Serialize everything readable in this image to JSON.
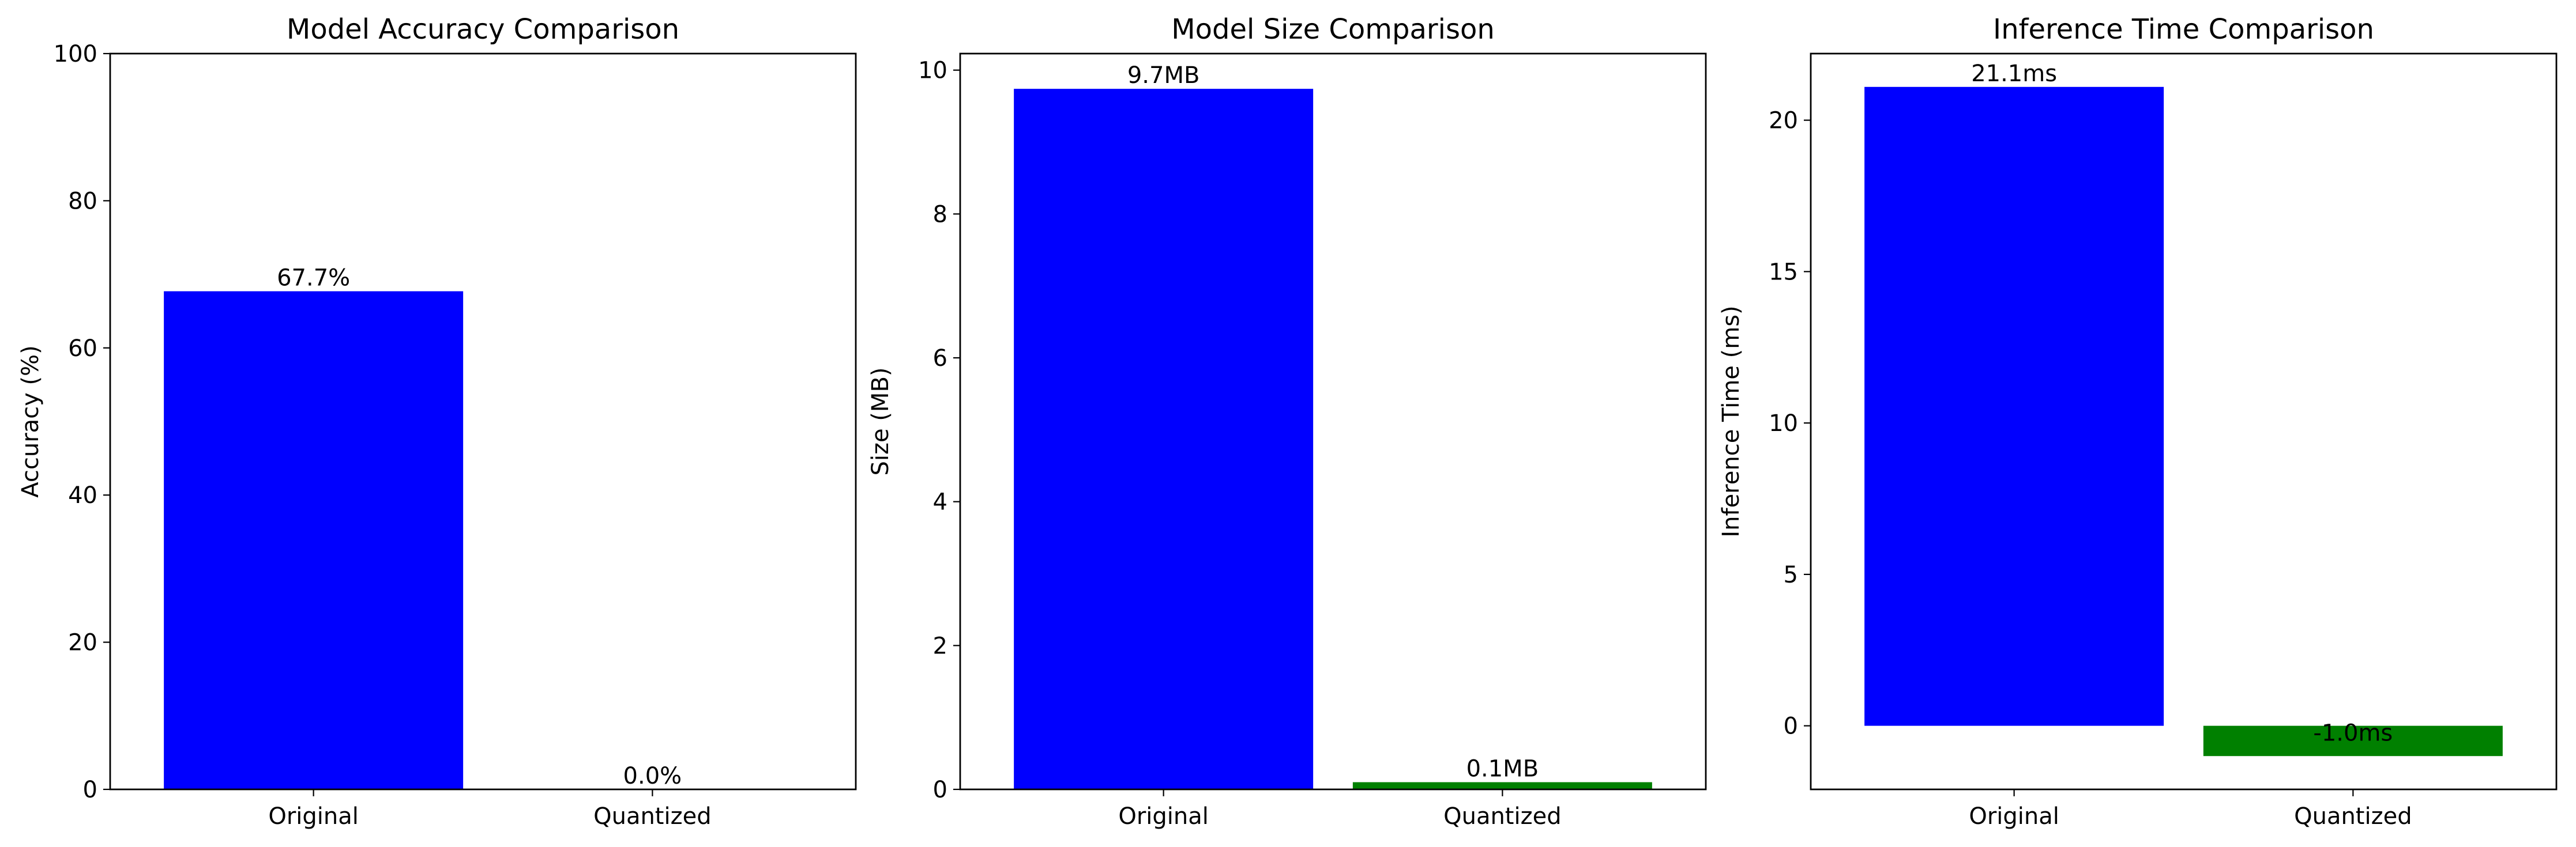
{
  "chart_data": [
    {
      "type": "bar",
      "title": "Model Accuracy Comparison",
      "xlabel": "",
      "ylabel": "Accuracy (%)",
      "categories": [
        "Original",
        "Quantized"
      ],
      "values": [
        67.7,
        0.0
      ],
      "data_labels": [
        "67.7%",
        "0.0%"
      ],
      "colors": [
        "#0000ff",
        "#008000"
      ],
      "ylim": [
        0,
        100
      ],
      "yticks": [
        0,
        20,
        40,
        60,
        80,
        100
      ],
      "ytick_labels": [
        "0",
        "20",
        "40",
        "60",
        "80",
        "100"
      ],
      "grid": false,
      "legend": "none"
    },
    {
      "type": "bar",
      "title": "Model Size Comparison",
      "xlabel": "",
      "ylabel": "Size (MB)",
      "categories": [
        "Original",
        "Quantized"
      ],
      "values": [
        9.74,
        0.1
      ],
      "data_labels": [
        "9.7MB",
        "0.1MB"
      ],
      "colors": [
        "#0000ff",
        "#008000"
      ],
      "ylim": [
        0,
        10.23
      ],
      "yticks": [
        0,
        2,
        4,
        6,
        8,
        10
      ],
      "ytick_labels": [
        "0",
        "2",
        "4",
        "6",
        "8",
        "10"
      ],
      "grid": false,
      "legend": "none"
    },
    {
      "type": "bar",
      "title": "Inference Time Comparison",
      "xlabel": "",
      "ylabel": "Inference Time (ms)",
      "categories": [
        "Original",
        "Quantized"
      ],
      "values": [
        21.1,
        -1.0
      ],
      "data_labels": [
        "21.1ms",
        "-1.0ms"
      ],
      "colors": [
        "#0000ff",
        "#008000"
      ],
      "ylim": [
        -2.1,
        22.2
      ],
      "yticks": [
        0,
        5,
        10,
        15,
        20
      ],
      "ytick_labels": [
        "0",
        "5",
        "10",
        "15",
        "20"
      ],
      "grid": false,
      "legend": "none"
    }
  ]
}
